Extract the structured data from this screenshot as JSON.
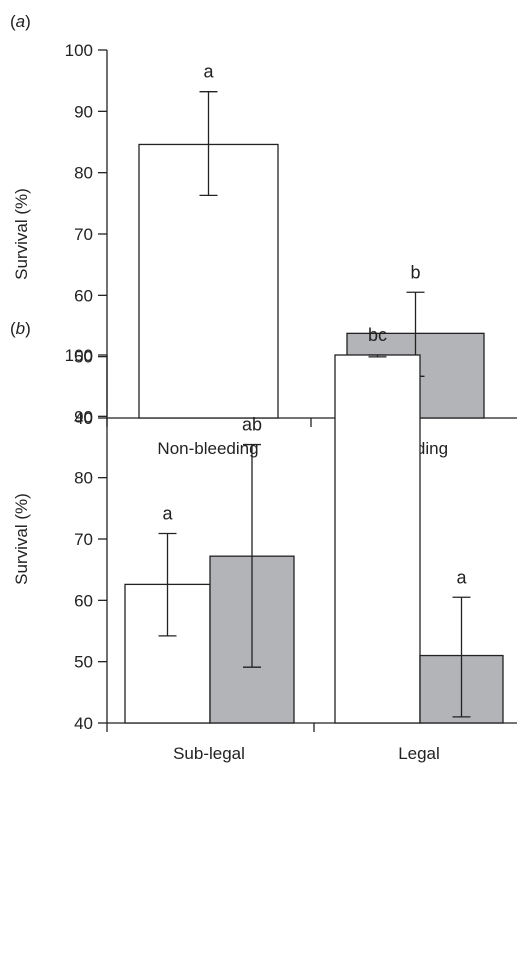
{
  "chart_data": [
    {
      "panel_label": "(a)",
      "type": "bar",
      "ylabel": "Survival (%)",
      "ylim": [
        40,
        100
      ],
      "yticks": [
        "40",
        "50",
        "60",
        "70",
        "80",
        "90",
        "100"
      ],
      "categories": [
        "Non-bleeding",
        "Bleeding"
      ],
      "bars": [
        {
          "category": "Non-bleeding",
          "value": 84.6,
          "err_low": 76.3,
          "err_high": 93.2,
          "letter": "a",
          "fill": "#ffffff"
        },
        {
          "category": "Bleeding",
          "value": 53.8,
          "err_low": 46.8,
          "err_high": 60.5,
          "letter": "b",
          "fill": "#b3b4b7"
        }
      ],
      "grid": false,
      "legend": "none"
    },
    {
      "panel_label": "(b)",
      "type": "bar",
      "ylabel": "Survival (%)",
      "ylim": [
        40,
        100
      ],
      "yticks": [
        "40",
        "50",
        "60",
        "70",
        "80",
        "90",
        "100"
      ],
      "categories": [
        "Sub-legal",
        "Legal"
      ],
      "bars": [
        {
          "category": "Sub-legal",
          "value": 62.6,
          "err_low": 54.2,
          "err_high": 70.9,
          "letter": "a",
          "fill": "#ffffff"
        },
        {
          "category": "Sub-legal",
          "value": 67.2,
          "err_low": 49.1,
          "err_high": 85.4,
          "letter": "ab",
          "fill": "#b3b4b7"
        },
        {
          "category": "Legal",
          "value": 100.0,
          "err_low": 99.7,
          "err_high": 100.0,
          "letter": "bc",
          "fill": "#ffffff"
        },
        {
          "category": "Legal",
          "value": 51.0,
          "err_low": 41.0,
          "err_high": 60.5,
          "letter": "a",
          "fill": "#b3b4b7"
        }
      ],
      "grid": false,
      "legend": "none"
    }
  ]
}
